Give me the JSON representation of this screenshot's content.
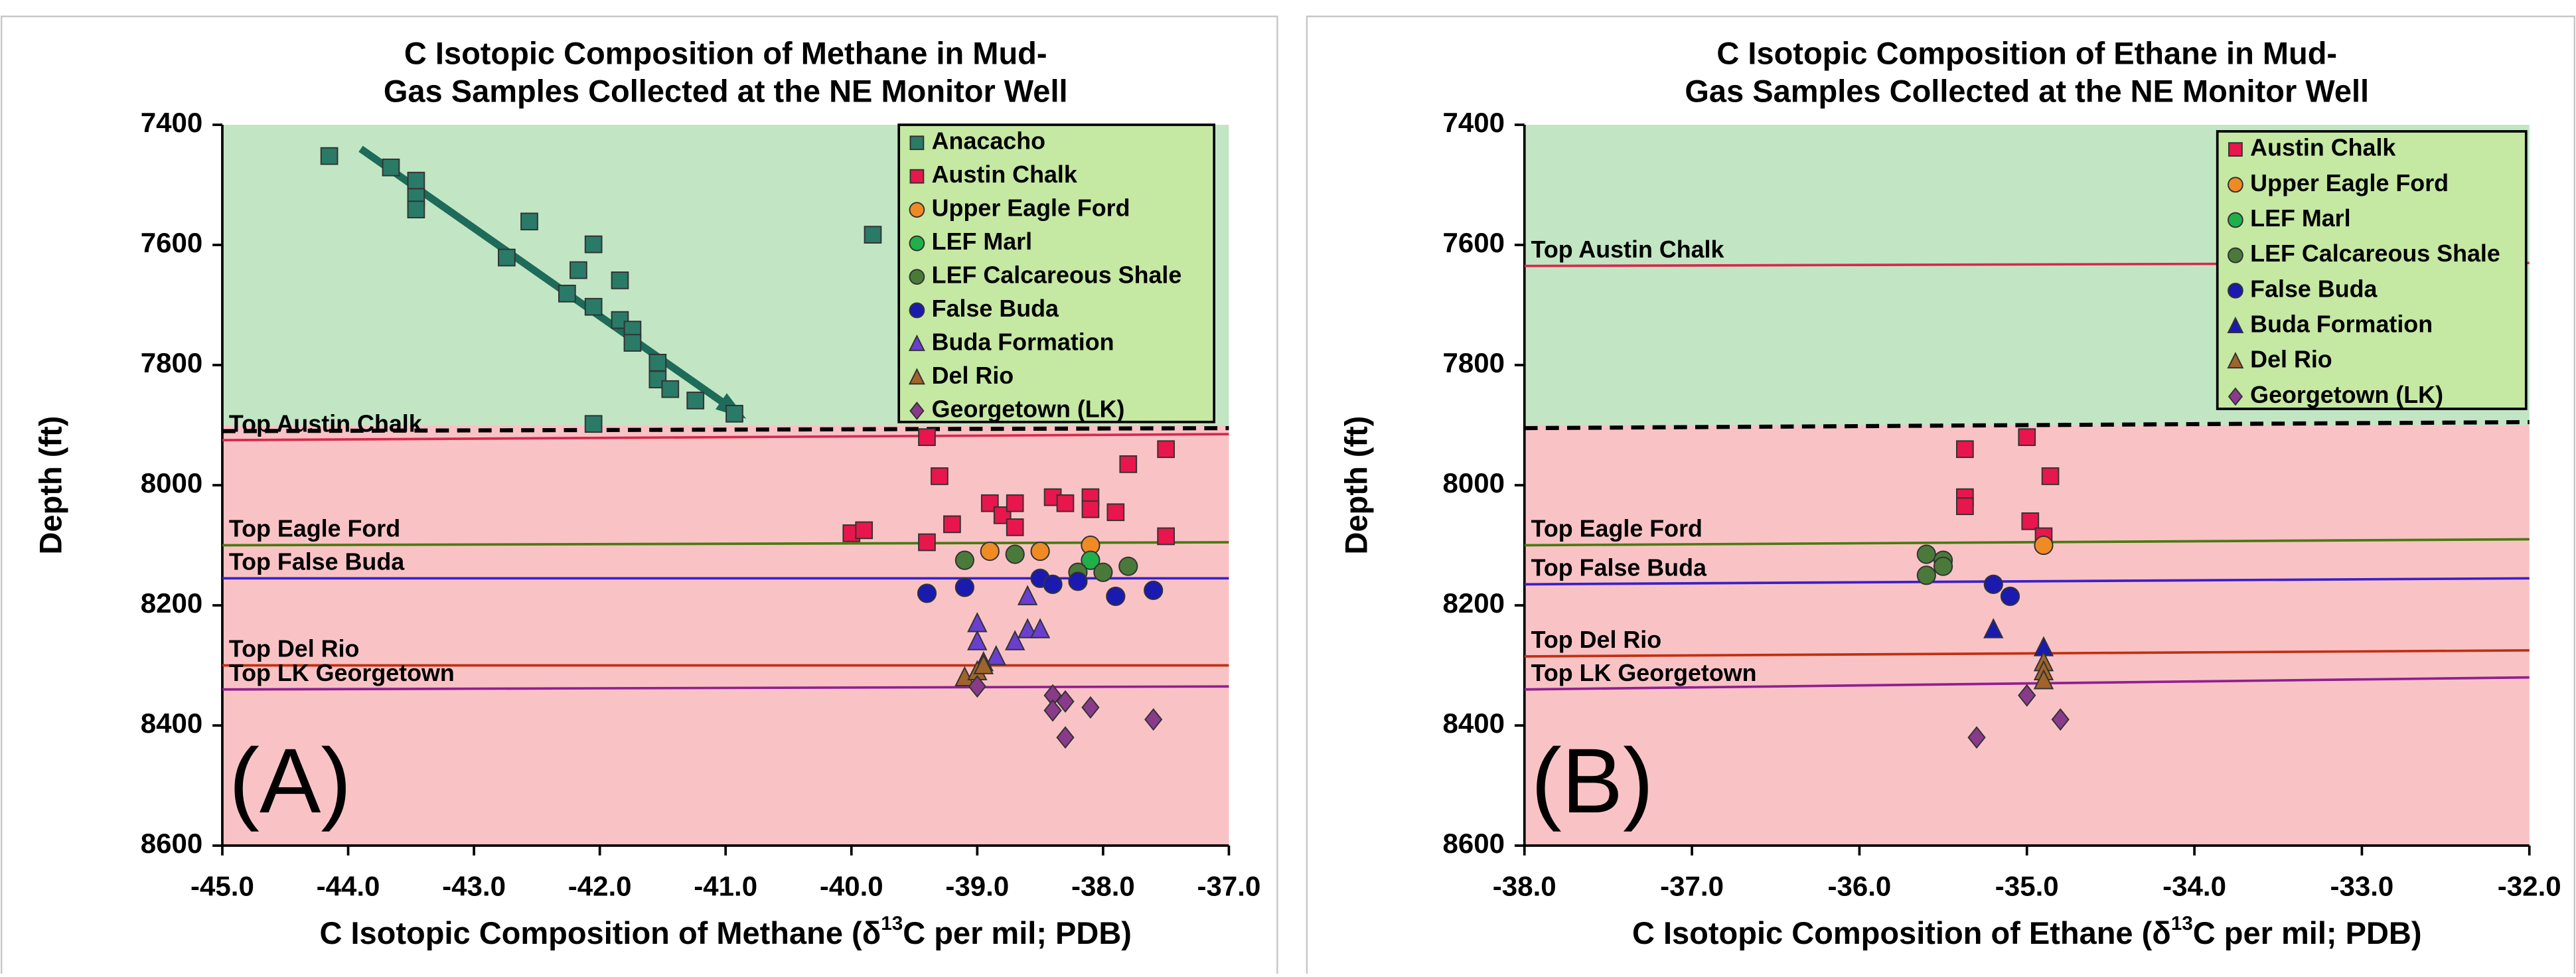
{
  "chart_data": [
    {
      "type": "scatter",
      "title": [
        "C Isotopic Composition of Methane in Mud-",
        "Gas Samples Collected at the NE Monitor Well"
      ],
      "xlabel": [
        "C Isotopic Composition of Methane  (δ",
        "13",
        "C per mil; PDB)"
      ],
      "ylabel": "Depth (ft)",
      "panel_label": "(A)",
      "xlim": [
        -45,
        -37
      ],
      "ylim": [
        7400,
        8600
      ],
      "y_inverted": true,
      "xticks": [
        {
          "value": -45,
          "label": "-45.0"
        },
        {
          "value": -44,
          "label": "-44.0"
        },
        {
          "value": -43,
          "label": "-43.0"
        },
        {
          "value": -42,
          "label": "-42.0"
        },
        {
          "value": -41,
          "label": "-41.0"
        },
        {
          "value": -40,
          "label": "-40.0"
        },
        {
          "value": -39,
          "label": "-39.0"
        },
        {
          "value": -38,
          "label": "-38.0"
        },
        {
          "value": -37,
          "label": "-37.0"
        }
      ],
      "yticks": [
        7400,
        7600,
        7800,
        8000,
        8200,
        8400,
        8600
      ],
      "regions": [
        {
          "y": [
            7400,
            7900
          ],
          "color": "#c2e6c4"
        },
        {
          "y": [
            7900,
            8600
          ],
          "color": "#f9c3c6"
        }
      ],
      "lines": [
        {
          "y": [
            7910,
            7905
          ],
          "color": "#000000",
          "dashed": true
        },
        {
          "label": "Top Austin Chalk",
          "y": [
            7925,
            7915
          ],
          "color": "#d8284c"
        },
        {
          "label": "Top Eagle Ford",
          "y": [
            8100,
            8095
          ],
          "color": "#4a7a10"
        },
        {
          "label": "Top False Buda",
          "y": [
            8155,
            8155
          ],
          "color": "#3a20c8"
        },
        {
          "label": "Top Del Rio",
          "y": [
            8300,
            8300
          ],
          "color": "#c03010"
        },
        {
          "label": "Top LK Georgetown",
          "y": [
            8340,
            8335
          ],
          "color": "#902090"
        }
      ],
      "trendline": {
        "x": [
          -43.9,
          -40.9
        ],
        "y": [
          7440,
          7880
        ],
        "color": "#1e6b5a"
      },
      "series": [
        {
          "name": "Anacacho",
          "color": "#2a7a68",
          "marker": "square",
          "x": [
            -44.15,
            -43.66,
            -43.46,
            -43.46,
            -43.46,
            -42.56,
            -42.74,
            -42.05,
            -42.17,
            -42.26,
            -41.84,
            -42.05,
            -41.84,
            -41.74,
            -41.74,
            -41.54,
            -41.54,
            -41.44,
            -41.24,
            -40.93,
            -39.83,
            -42.05
          ],
          "y": [
            7452,
            7471,
            7493,
            7520,
            7541,
            7561,
            7621,
            7599,
            7642,
            7681,
            7659,
            7703,
            7725,
            7741,
            7763,
            7796,
            7824,
            7840,
            7859,
            7881,
            7583,
            7898
          ]
        },
        {
          "name": "Austin Chalk",
          "color": "#e8164c",
          "marker": "square",
          "x": [
            -39.4,
            -39.3,
            -40.0,
            -39.9,
            -39.4,
            -39.2,
            -38.9,
            -38.8,
            -38.7,
            -38.4,
            -38.3,
            -38.1,
            -38.1,
            -37.9,
            -37.8,
            -37.5,
            -37.5,
            -38.7
          ],
          "y": [
            7920,
            7985,
            8080,
            8075,
            8095,
            8065,
            8030,
            8050,
            8030,
            8020,
            8030,
            8020,
            8040,
            8045,
            7965,
            7940,
            8085,
            8070
          ]
        },
        {
          "name": "Upper Eagle Ford",
          "color": "#f08a24",
          "marker": "circle",
          "x": [
            -38.9,
            -38.5,
            -38.1
          ],
          "y": [
            8110,
            8110,
            8100
          ]
        },
        {
          "name": "LEF Marl",
          "color": "#1fb04a",
          "marker": "circle",
          "x": [
            -38.1
          ],
          "y": [
            8125
          ]
        },
        {
          "name": "LEF Calcareous Shale",
          "color": "#4a7a3a",
          "marker": "circle",
          "x": [
            -39.1,
            -38.7,
            -38.2,
            -37.8,
            -38.0
          ],
          "y": [
            8125,
            8115,
            8145,
            8135,
            8145
          ]
        },
        {
          "name": "False Buda",
          "color": "#1a1ab0",
          "marker": "circle",
          "x": [
            -39.4,
            -39.1,
            -38.5,
            -38.4,
            -38.2,
            -37.9,
            -37.6
          ],
          "y": [
            8180,
            8170,
            8155,
            8165,
            8160,
            8185,
            8175
          ]
        },
        {
          "name": "Buda Formation",
          "color": "#6a3fd0",
          "marker": "triangle",
          "x": [
            -39.0,
            -39.0,
            -38.85,
            -38.7,
            -38.6,
            -38.5,
            -38.6,
            -38.95
          ],
          "y": [
            8230,
            8260,
            8285,
            8260,
            8240,
            8240,
            8185,
            8295
          ]
        },
        {
          "name": "Del Rio",
          "color": "#a0642a",
          "marker": "triangle",
          "x": [
            -39.1,
            -39.0,
            -38.95
          ],
          "y": [
            8320,
            8310,
            8300
          ]
        },
        {
          "name": "Georgetown (LK)",
          "color": "#8a3a8a",
          "marker": "diamond",
          "x": [
            -39.0,
            -38.4,
            -38.4,
            -38.3,
            -38.1,
            -38.3,
            -37.6
          ],
          "y": [
            8335,
            8350,
            8375,
            8360,
            8370,
            8420,
            8390
          ]
        }
      ]
    },
    {
      "type": "scatter",
      "title": [
        "C Isotopic Composition of Ethane in Mud-",
        "Gas Samples Collected at the NE Monitor Well"
      ],
      "xlabel": [
        "C Isotopic Composition of Ethane  (δ",
        "13",
        "C per mil; PDB)"
      ],
      "ylabel": "Depth (ft)",
      "panel_label": "(B)",
      "xlim": [
        -38,
        -32
      ],
      "ylim": [
        7400,
        8600
      ],
      "y_inverted": true,
      "xticks": [
        {
          "value": -38,
          "label": "-38.0"
        },
        {
          "value": -37,
          "label": "-37.0"
        },
        {
          "value": -36,
          "label": "-36.0"
        },
        {
          "value": -35,
          "label": "-35.0"
        },
        {
          "value": -34,
          "label": "-34.0"
        },
        {
          "value": -33,
          "label": "-33.0"
        },
        {
          "value": -32,
          "label": "-32.0"
        }
      ],
      "yticks": [
        7400,
        7600,
        7800,
        8000,
        8200,
        8400,
        8600
      ],
      "regions": [
        {
          "y": [
            7400,
            7900
          ],
          "color": "#c2e6c4"
        },
        {
          "y": [
            7900,
            8600
          ],
          "color": "#f9c3c6"
        }
      ],
      "lines": [
        {
          "y": [
            7905,
            7895
          ],
          "color": "#000000",
          "dashed": true
        },
        {
          "label": "Top Austin Chalk",
          "y": [
            7635,
            7630
          ],
          "color": "#d8284c"
        },
        {
          "label": "Top Eagle Ford",
          "y": [
            8100,
            8090
          ],
          "color": "#4a7a10"
        },
        {
          "label": "Top False Buda",
          "y": [
            8165,
            8155
          ],
          "color": "#3a20c8"
        },
        {
          "label": "Top Del Rio",
          "y": [
            8285,
            8275
          ],
          "color": "#c03010"
        },
        {
          "label": "Top LK Georgetown",
          "y": [
            8340,
            8320
          ],
          "color": "#902090"
        }
      ],
      "series": [
        {
          "name": "Austin Chalk",
          "color": "#e8164c",
          "marker": "square",
          "x": [
            -35.37,
            -35.37,
            -35.37,
            -35.0,
            -34.86,
            -34.98,
            -34.9
          ],
          "y": [
            7940,
            8020,
            8035,
            7920,
            7985,
            8060,
            8085
          ]
        },
        {
          "name": "Upper Eagle Ford",
          "color": "#f08a24",
          "marker": "circle",
          "x": [
            -34.9
          ],
          "y": [
            8100
          ]
        },
        {
          "name": "LEF Marl",
          "color": "#1fb04a",
          "marker": "circle",
          "x": [],
          "y": []
        },
        {
          "name": "LEF Calcareous Shale",
          "color": "#4a7a3a",
          "marker": "circle",
          "x": [
            -35.6,
            -35.5,
            -35.5,
            -35.6
          ],
          "y": [
            8115,
            8125,
            8135,
            8150
          ]
        },
        {
          "name": "False Buda",
          "color": "#1a1ab0",
          "marker": "circle",
          "x": [
            -35.2,
            -35.1
          ],
          "y": [
            8165,
            8185
          ]
        },
        {
          "name": "Buda Formation",
          "color": "#1a1ab0",
          "marker": "triangle",
          "x": [
            -35.2,
            -34.9
          ],
          "y": [
            8240,
            8270
          ]
        },
        {
          "name": "Del Rio",
          "color": "#a0642a",
          "marker": "triangle",
          "x": [
            -34.9,
            -34.9,
            -34.9
          ],
          "y": [
            8295,
            8310,
            8325
          ]
        },
        {
          "name": "Georgetown (LK)",
          "color": "#8a3a8a",
          "marker": "diamond",
          "x": [
            -35.3,
            -35.0,
            -34.8
          ],
          "y": [
            8420,
            8350,
            8390
          ]
        }
      ]
    }
  ]
}
